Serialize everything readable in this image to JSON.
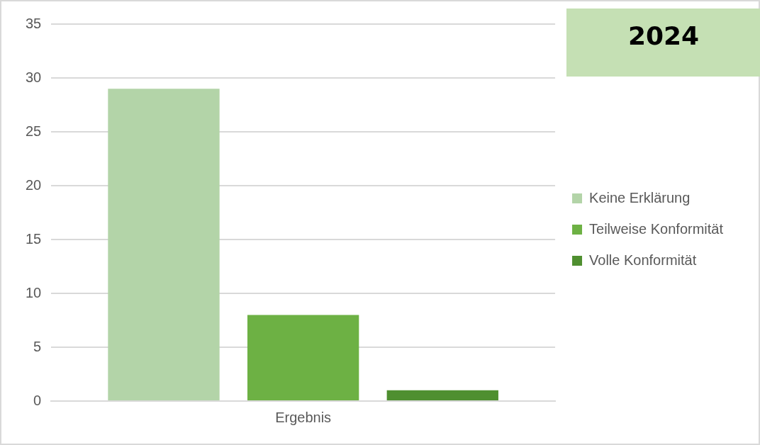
{
  "chart_data": {
    "type": "bar",
    "title": "2024",
    "categories": [
      "Ergebnis"
    ],
    "series": [
      {
        "name": "Keine Erklärung",
        "color": "#b3d4a8",
        "values": [
          29
        ]
      },
      {
        "name": "Teilweise Konformität",
        "color": "#6db144",
        "values": [
          8
        ]
      },
      {
        "name": "Volle Konformität",
        "color": "#4f8f30",
        "values": [
          1
        ]
      }
    ],
    "ylim": [
      0,
      35
    ],
    "yticks": [
      0,
      5,
      10,
      15,
      20,
      25,
      30,
      35
    ],
    "grid": "y",
    "legend": "right"
  }
}
